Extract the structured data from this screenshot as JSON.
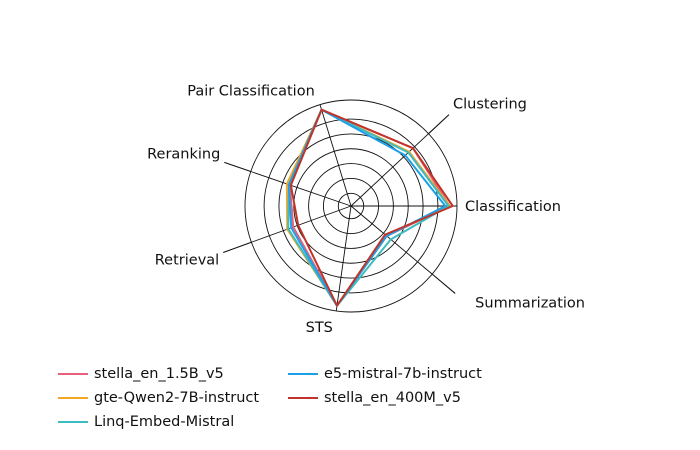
{
  "chart_data": {
    "type": "radar",
    "axes": [
      "Classification",
      "Clustering",
      "Pair Classification",
      "Reranking",
      "Retrieval",
      "STS",
      "Summarization"
    ],
    "rlim": [
      0,
      1
    ],
    "grid": true,
    "legend_position": "bottom",
    "series": [
      {
        "name": "stella_en_1.5B_v5",
        "color": "#e8607a",
        "values": [
          0.93,
          0.8,
          0.95,
          0.61,
          0.58,
          0.95,
          0.44
        ]
      },
      {
        "name": "gte-Qwen2-7B-instruct",
        "color": "#f5a623",
        "values": [
          0.93,
          0.75,
          0.95,
          0.64,
          0.64,
          0.95,
          0.43
        ]
      },
      {
        "name": "Linq-Embed-Mistral",
        "color": "#3dbcbf",
        "values": [
          0.92,
          0.74,
          0.95,
          0.62,
          0.63,
          0.95,
          0.49
        ]
      },
      {
        "name": "e5-mistral-7b-instruct",
        "color": "#1e9fe8",
        "values": [
          0.89,
          0.7,
          0.95,
          0.62,
          0.6,
          0.95,
          0.44
        ]
      },
      {
        "name": "stella_en_400M_v5",
        "color": "#c0342a",
        "values": [
          0.96,
          0.8,
          0.95,
          0.6,
          0.53,
          0.95,
          0.42
        ]
      }
    ]
  }
}
